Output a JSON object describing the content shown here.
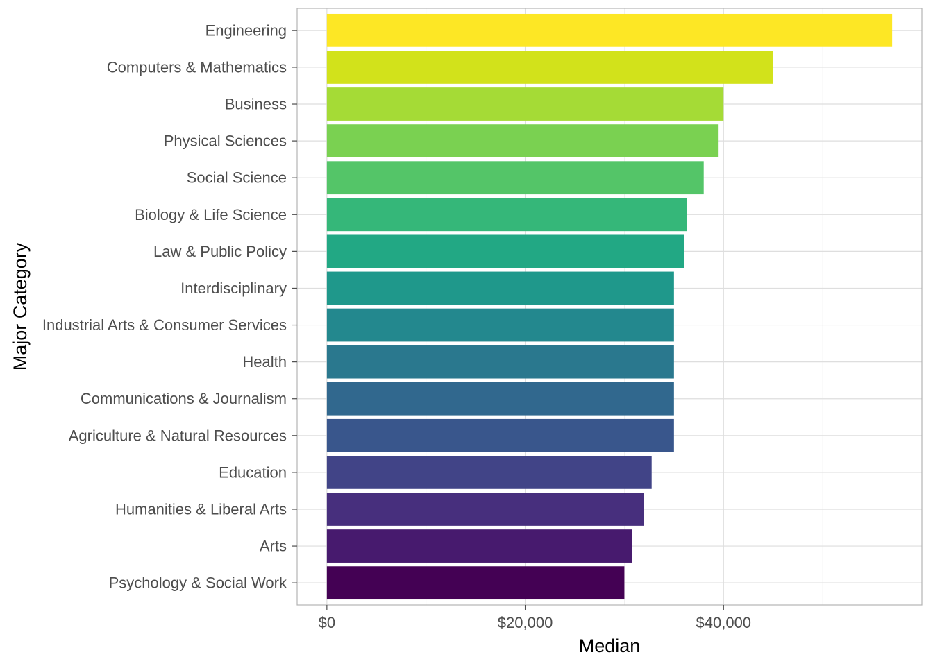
{
  "chart_data": {
    "type": "bar",
    "orientation": "horizontal",
    "categories": [
      "Engineering",
      "Computers & Mathematics",
      "Business",
      "Physical Sciences",
      "Social Science",
      "Biology & Life Science",
      "Law & Public Policy",
      "Interdisciplinary",
      "Industrial Arts & Consumer Services",
      "Health",
      "Communications & Journalism",
      "Agriculture & Natural Resources",
      "Education",
      "Humanities & Liberal Arts",
      "Arts",
      "Psychology & Social Work"
    ],
    "values": [
      57000,
      45000,
      40000,
      39500,
      38000,
      36300,
      36000,
      35000,
      35000,
      35000,
      35000,
      35000,
      32750,
      32000,
      30750,
      30000
    ],
    "colors": [
      "#FDE725",
      "#D2E21B",
      "#A5DB36",
      "#7AD151",
      "#54C568",
      "#35B779",
      "#22A884",
      "#1F988B",
      "#23888E",
      "#2A788E",
      "#31688E",
      "#39568C",
      "#414487",
      "#472F7D",
      "#471A6E",
      "#440154"
    ],
    "xlabel": "Median",
    "ylabel": "Major Category",
    "xlim": [
      -3000,
      60000
    ],
    "x_ticks": [
      {
        "value": 0,
        "label": "$0"
      },
      {
        "value": 20000,
        "label": "$20,000"
      },
      {
        "value": 40000,
        "label": "$40,000"
      }
    ],
    "x_minor_ticks": [
      10000,
      30000,
      50000
    ],
    "grid": true,
    "legend": "none"
  }
}
